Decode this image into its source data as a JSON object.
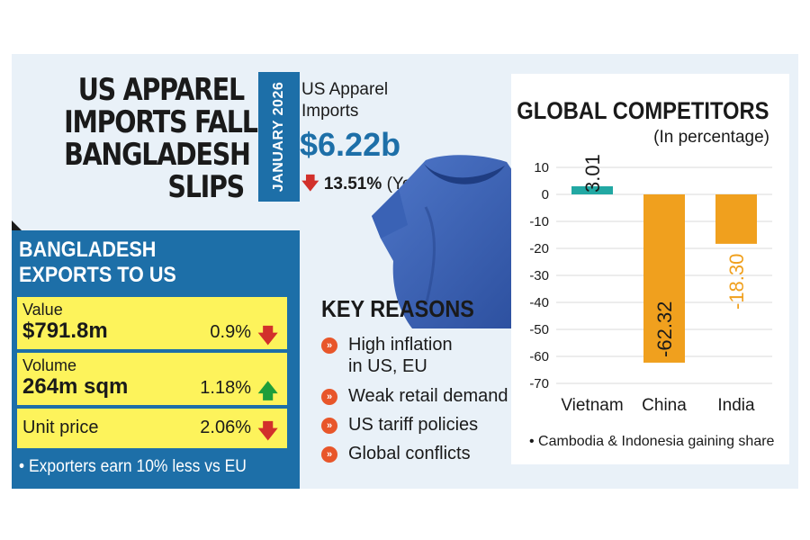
{
  "headline": {
    "lines": [
      "US APPAREL",
      "IMPORTS FALL,",
      "BANGLADESH",
      "SLIPS"
    ]
  },
  "date_tab": "JANUARY 2026",
  "imports": {
    "label_line1": "US Apparel",
    "label_line2": "Imports",
    "value": "$6.22b",
    "change_arrow": "🡇",
    "change_value": "13.51%",
    "change_suffix": "(YoY)"
  },
  "exports": {
    "title_line1": "BANGLADESH",
    "title_line2": "EXPORTS TO US",
    "rows": [
      {
        "label": "Value",
        "value": "$791.8m",
        "change": "0.9%",
        "direction": "down",
        "arrow": "🡇"
      },
      {
        "label": "Volume",
        "value": "264m sqm",
        "change": "1.18%",
        "direction": "up",
        "arrow": "🡅"
      },
      {
        "label": "Unit price",
        "value": "",
        "change": "2.06%",
        "direction": "down",
        "arrow": "🡇"
      }
    ],
    "note": "• Exporters earn 10% less vs EU"
  },
  "key_reasons": {
    "title": "KEY REASONS",
    "bullet": "»",
    "items": [
      {
        "line1": "High inflation",
        "line2": "in US, EU"
      },
      {
        "line1": "Weak retail demand",
        "line2": ""
      },
      {
        "line1": "US tariff policies",
        "line2": ""
      },
      {
        "line1": "Global conflicts",
        "line2": ""
      }
    ]
  },
  "colors": {
    "accent_blue": "#1d6fa8",
    "teal_bar": "#22a8a3",
    "orange_bar": "#f0a01e",
    "highlight_yellow": "#fdf35b",
    "down_red": "#d2302b",
    "up_green": "#1e9e3a",
    "bullet_orange": "#e8562a"
  },
  "chart_data": {
    "type": "bar",
    "title": "GLOBAL COMPETITORS",
    "subtitle": "(In percentage)",
    "categories": [
      "Vietnam",
      "China",
      "India"
    ],
    "values": [
      3.01,
      -62.32,
      -18.3
    ],
    "value_labels": [
      "3.01",
      "-62.32",
      "-18.30"
    ],
    "bar_colors": [
      "#22a8a3",
      "#f0a01e",
      "#f0a01e"
    ],
    "ylim": [
      -70,
      10
    ],
    "yticks": [
      10,
      0,
      -10,
      -20,
      -30,
      -40,
      -50,
      -60,
      -70
    ],
    "grid": true,
    "xlabel": "",
    "ylabel": "",
    "note": "• Cambodia & Indonesia gaining share"
  }
}
